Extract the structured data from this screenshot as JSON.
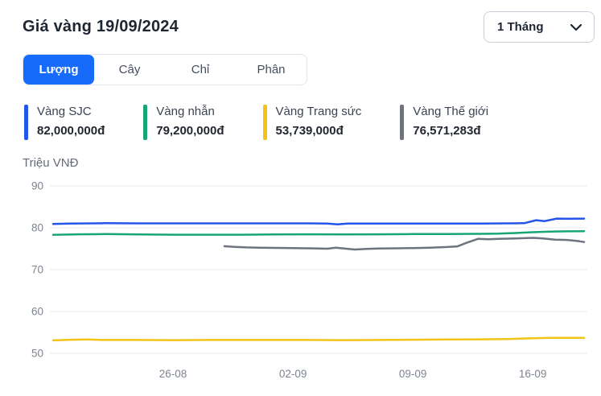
{
  "header": {
    "title": "Giá vàng 19/09/2024",
    "period_dropdown": "1 Tháng"
  },
  "colors": {
    "accent_blue": "#176bfb",
    "sjc_blue": "#2356e6",
    "ring_green": "#17a673",
    "jewelry_yellow": "#f2c318",
    "world_gray": "#6d7480"
  },
  "tabs": [
    {
      "label": "Lượng",
      "active": true
    },
    {
      "label": "Cây",
      "active": false
    },
    {
      "label": "Chỉ",
      "active": false
    },
    {
      "label": "Phân",
      "active": false
    }
  ],
  "legend": [
    {
      "name": "Vàng SJC",
      "value": "82,000,000đ",
      "color": "#2356e6"
    },
    {
      "name": "Vàng nhẫn",
      "value": "79,200,000đ",
      "color": "#17a673"
    },
    {
      "name": "Vàng Trang sức",
      "value": "53,739,000đ",
      "color": "#f2c318"
    },
    {
      "name": "Vàng Thế giới",
      "value": "76,571,283đ",
      "color": "#6d7480"
    }
  ],
  "chart_data": {
    "type": "line",
    "title": "",
    "ylabel": "Triệu VNĐ",
    "xlabel": "",
    "ylim": [
      50,
      90
    ],
    "yticks": [
      90,
      80,
      70,
      60,
      50
    ],
    "xlim": [
      0,
      31
    ],
    "xticks": [
      {
        "label": "26-08",
        "x": 7
      },
      {
        "label": "02-09",
        "x": 14
      },
      {
        "label": "09-09",
        "x": 21
      },
      {
        "label": "16-09",
        "x": 28
      }
    ],
    "grid": "horizontal",
    "legend_position": "top",
    "series": [
      {
        "name": "Vàng SJC",
        "color": "#2356e6",
        "points": [
          [
            0,
            80.9
          ],
          [
            1,
            81
          ],
          [
            3,
            81.1
          ],
          [
            5,
            81.05
          ],
          [
            7,
            81.05
          ],
          [
            9,
            81.05
          ],
          [
            11,
            81.05
          ],
          [
            13,
            81.05
          ],
          [
            15,
            81.05
          ],
          [
            16,
            81
          ],
          [
            16.6,
            80.8
          ],
          [
            17.2,
            81
          ],
          [
            19,
            81
          ],
          [
            21,
            81
          ],
          [
            23,
            81
          ],
          [
            25,
            81
          ],
          [
            26.5,
            81.05
          ],
          [
            27.5,
            81.1
          ],
          [
            28.2,
            81.8
          ],
          [
            28.7,
            81.6
          ],
          [
            29.4,
            82.2
          ],
          [
            30,
            82.15
          ],
          [
            31,
            82.2
          ]
        ]
      },
      {
        "name": "Vàng nhẫn",
        "color": "#17a673",
        "points": [
          [
            0,
            78.3
          ],
          [
            1.5,
            78.45
          ],
          [
            3,
            78.5
          ],
          [
            5,
            78.4
          ],
          [
            7,
            78.35
          ],
          [
            9,
            78.35
          ],
          [
            11,
            78.35
          ],
          [
            13,
            78.4
          ],
          [
            15,
            78.45
          ],
          [
            17,
            78.4
          ],
          [
            19,
            78.45
          ],
          [
            21,
            78.5
          ],
          [
            23,
            78.5
          ],
          [
            25,
            78.55
          ],
          [
            26,
            78.6
          ],
          [
            27,
            78.75
          ],
          [
            28,
            78.95
          ],
          [
            29,
            79.1
          ],
          [
            30,
            79.15
          ],
          [
            31,
            79.2
          ]
        ]
      },
      {
        "name": "Vàng Trang sức",
        "color": "#f2c318",
        "points": [
          [
            0,
            53.1
          ],
          [
            1,
            53.25
          ],
          [
            2,
            53.3
          ],
          [
            3,
            53.2
          ],
          [
            5,
            53.2
          ],
          [
            7,
            53.15
          ],
          [
            9,
            53.2
          ],
          [
            11,
            53.2
          ],
          [
            13,
            53.2
          ],
          [
            15,
            53.2
          ],
          [
            17,
            53.15
          ],
          [
            19,
            53.2
          ],
          [
            21,
            53.25
          ],
          [
            23,
            53.3
          ],
          [
            25,
            53.35
          ],
          [
            26.5,
            53.4
          ],
          [
            28,
            53.6
          ],
          [
            29,
            53.7
          ],
          [
            30,
            53.7
          ],
          [
            31,
            53.7
          ]
        ]
      },
      {
        "name": "Vàng Thế giới",
        "color": "#6d7480",
        "points": [
          [
            10,
            75.6
          ],
          [
            10.6,
            75.45
          ],
          [
            11.3,
            75.3
          ],
          [
            12,
            75.25
          ],
          [
            13,
            75.2
          ],
          [
            14,
            75.15
          ],
          [
            15,
            75.1
          ],
          [
            16,
            75
          ],
          [
            16.5,
            75.25
          ],
          [
            17,
            75.05
          ],
          [
            17.6,
            74.8
          ],
          [
            18.3,
            74.95
          ],
          [
            19,
            75.05
          ],
          [
            20,
            75.1
          ],
          [
            21,
            75.15
          ],
          [
            22,
            75.25
          ],
          [
            23,
            75.4
          ],
          [
            23.6,
            75.55
          ],
          [
            24.2,
            76.5
          ],
          [
            24.8,
            77.35
          ],
          [
            25.4,
            77.25
          ],
          [
            26,
            77.35
          ],
          [
            27,
            77.45
          ],
          [
            28,
            77.6
          ],
          [
            28.6,
            77.45
          ],
          [
            29.3,
            77.15
          ],
          [
            30,
            77.1
          ],
          [
            30.6,
            76.85
          ],
          [
            31,
            76.6
          ]
        ]
      }
    ]
  }
}
